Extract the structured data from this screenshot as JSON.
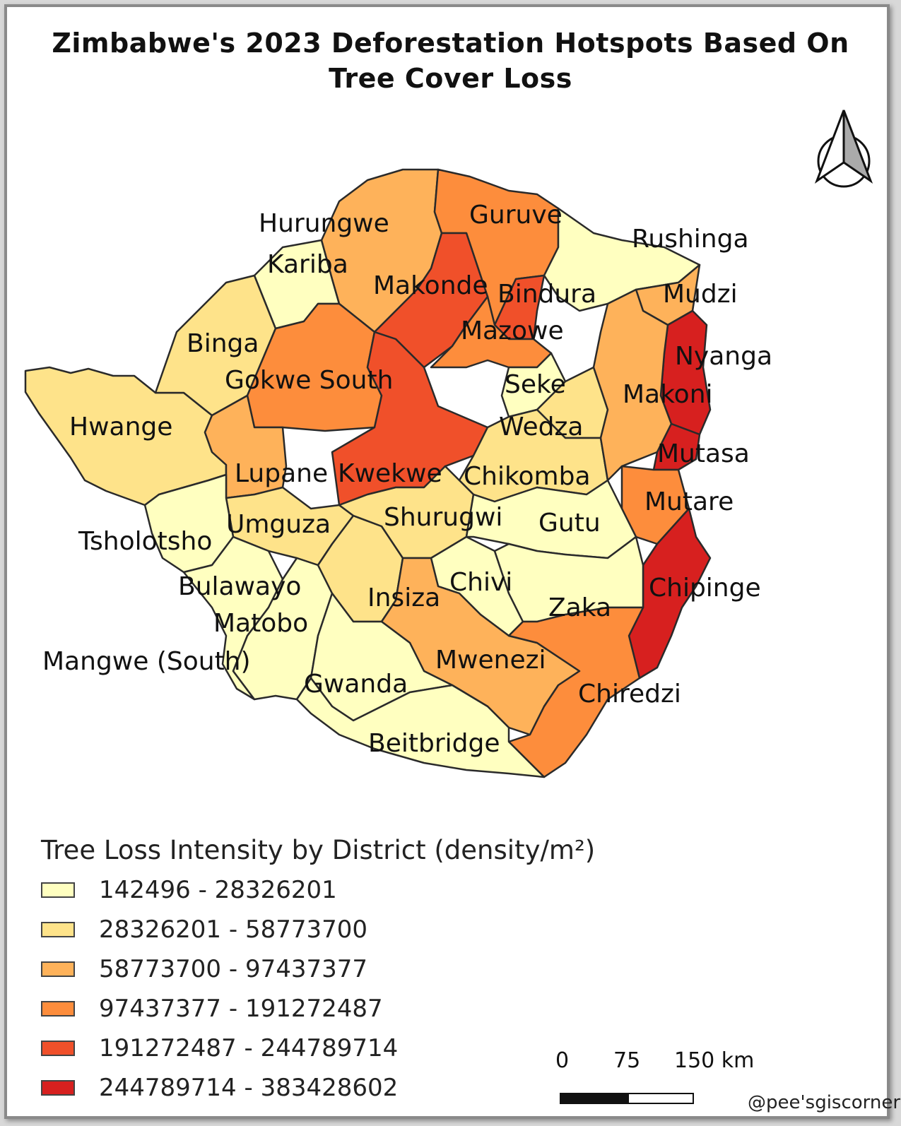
{
  "title_line1": "Zimbabwe's 2023 Deforestation Hotspots Based On",
  "title_line2": "Tree Cover Loss",
  "legend": {
    "title": "Tree Loss Intensity by District (density/m²)",
    "classes": [
      {
        "label": "142496 - 28326201",
        "color": "#ffffc0"
      },
      {
        "label": "28326201 - 58773700",
        "color": "#fee38a"
      },
      {
        "label": "58773700 - 97437377",
        "color": "#feb25a"
      },
      {
        "label": "97437377 - 191272487",
        "color": "#fd8d3c"
      },
      {
        "label": "191272487 - 244789714",
        "color": "#f0502a"
      },
      {
        "label": "244789714 - 383428602",
        "color": "#d7201f"
      }
    ]
  },
  "districts": [
    {
      "name": "Hurungwe",
      "class": 2
    },
    {
      "name": "Kariba",
      "class": 0
    },
    {
      "name": "Guruve",
      "class": 3
    },
    {
      "name": "Rushinga",
      "class": 0
    },
    {
      "name": "Makonde",
      "class": 4
    },
    {
      "name": "Bindura",
      "class": 4
    },
    {
      "name": "Mudzi",
      "class": 2
    },
    {
      "name": "Binga",
      "class": 1
    },
    {
      "name": "Mazowe",
      "class": 3
    },
    {
      "name": "Nyanga",
      "class": 5
    },
    {
      "name": "Gokwe South",
      "class": 3
    },
    {
      "name": "Seke",
      "class": 0
    },
    {
      "name": "Makoni",
      "class": 2
    },
    {
      "name": "Hwange",
      "class": 1
    },
    {
      "name": "Wedza",
      "class": 1
    },
    {
      "name": "Mutasa",
      "class": 5
    },
    {
      "name": "Lupane",
      "class": 2
    },
    {
      "name": "Kwekwe",
      "class": 4
    },
    {
      "name": "Chikomba",
      "class": 1
    },
    {
      "name": "Mutare",
      "class": 3
    },
    {
      "name": "Umguza",
      "class": 1
    },
    {
      "name": "Shurugwi",
      "class": 1
    },
    {
      "name": "Gutu",
      "class": 0
    },
    {
      "name": "Tsholotsho",
      "class": 0
    },
    {
      "name": "Chipinge",
      "class": 5
    },
    {
      "name": "Bulawayo",
      "class": 0
    },
    {
      "name": "Chivi",
      "class": 0
    },
    {
      "name": "Insiza",
      "class": 1
    },
    {
      "name": "Zaka",
      "class": 0
    },
    {
      "name": "Matobo",
      "class": 0
    },
    {
      "name": "Mwenezi",
      "class": 2
    },
    {
      "name": "Mangwe (South)",
      "class": 0
    },
    {
      "name": "Gwanda",
      "class": 0
    },
    {
      "name": "Chiredzi",
      "class": 3
    },
    {
      "name": "Beitbridge",
      "class": 0
    }
  ],
  "north_arrow_icon": "north-arrow-icon",
  "scale_bar": {
    "labels": [
      "0",
      "75",
      "150 km"
    ]
  },
  "credit": "@pee'sgiscorner"
}
